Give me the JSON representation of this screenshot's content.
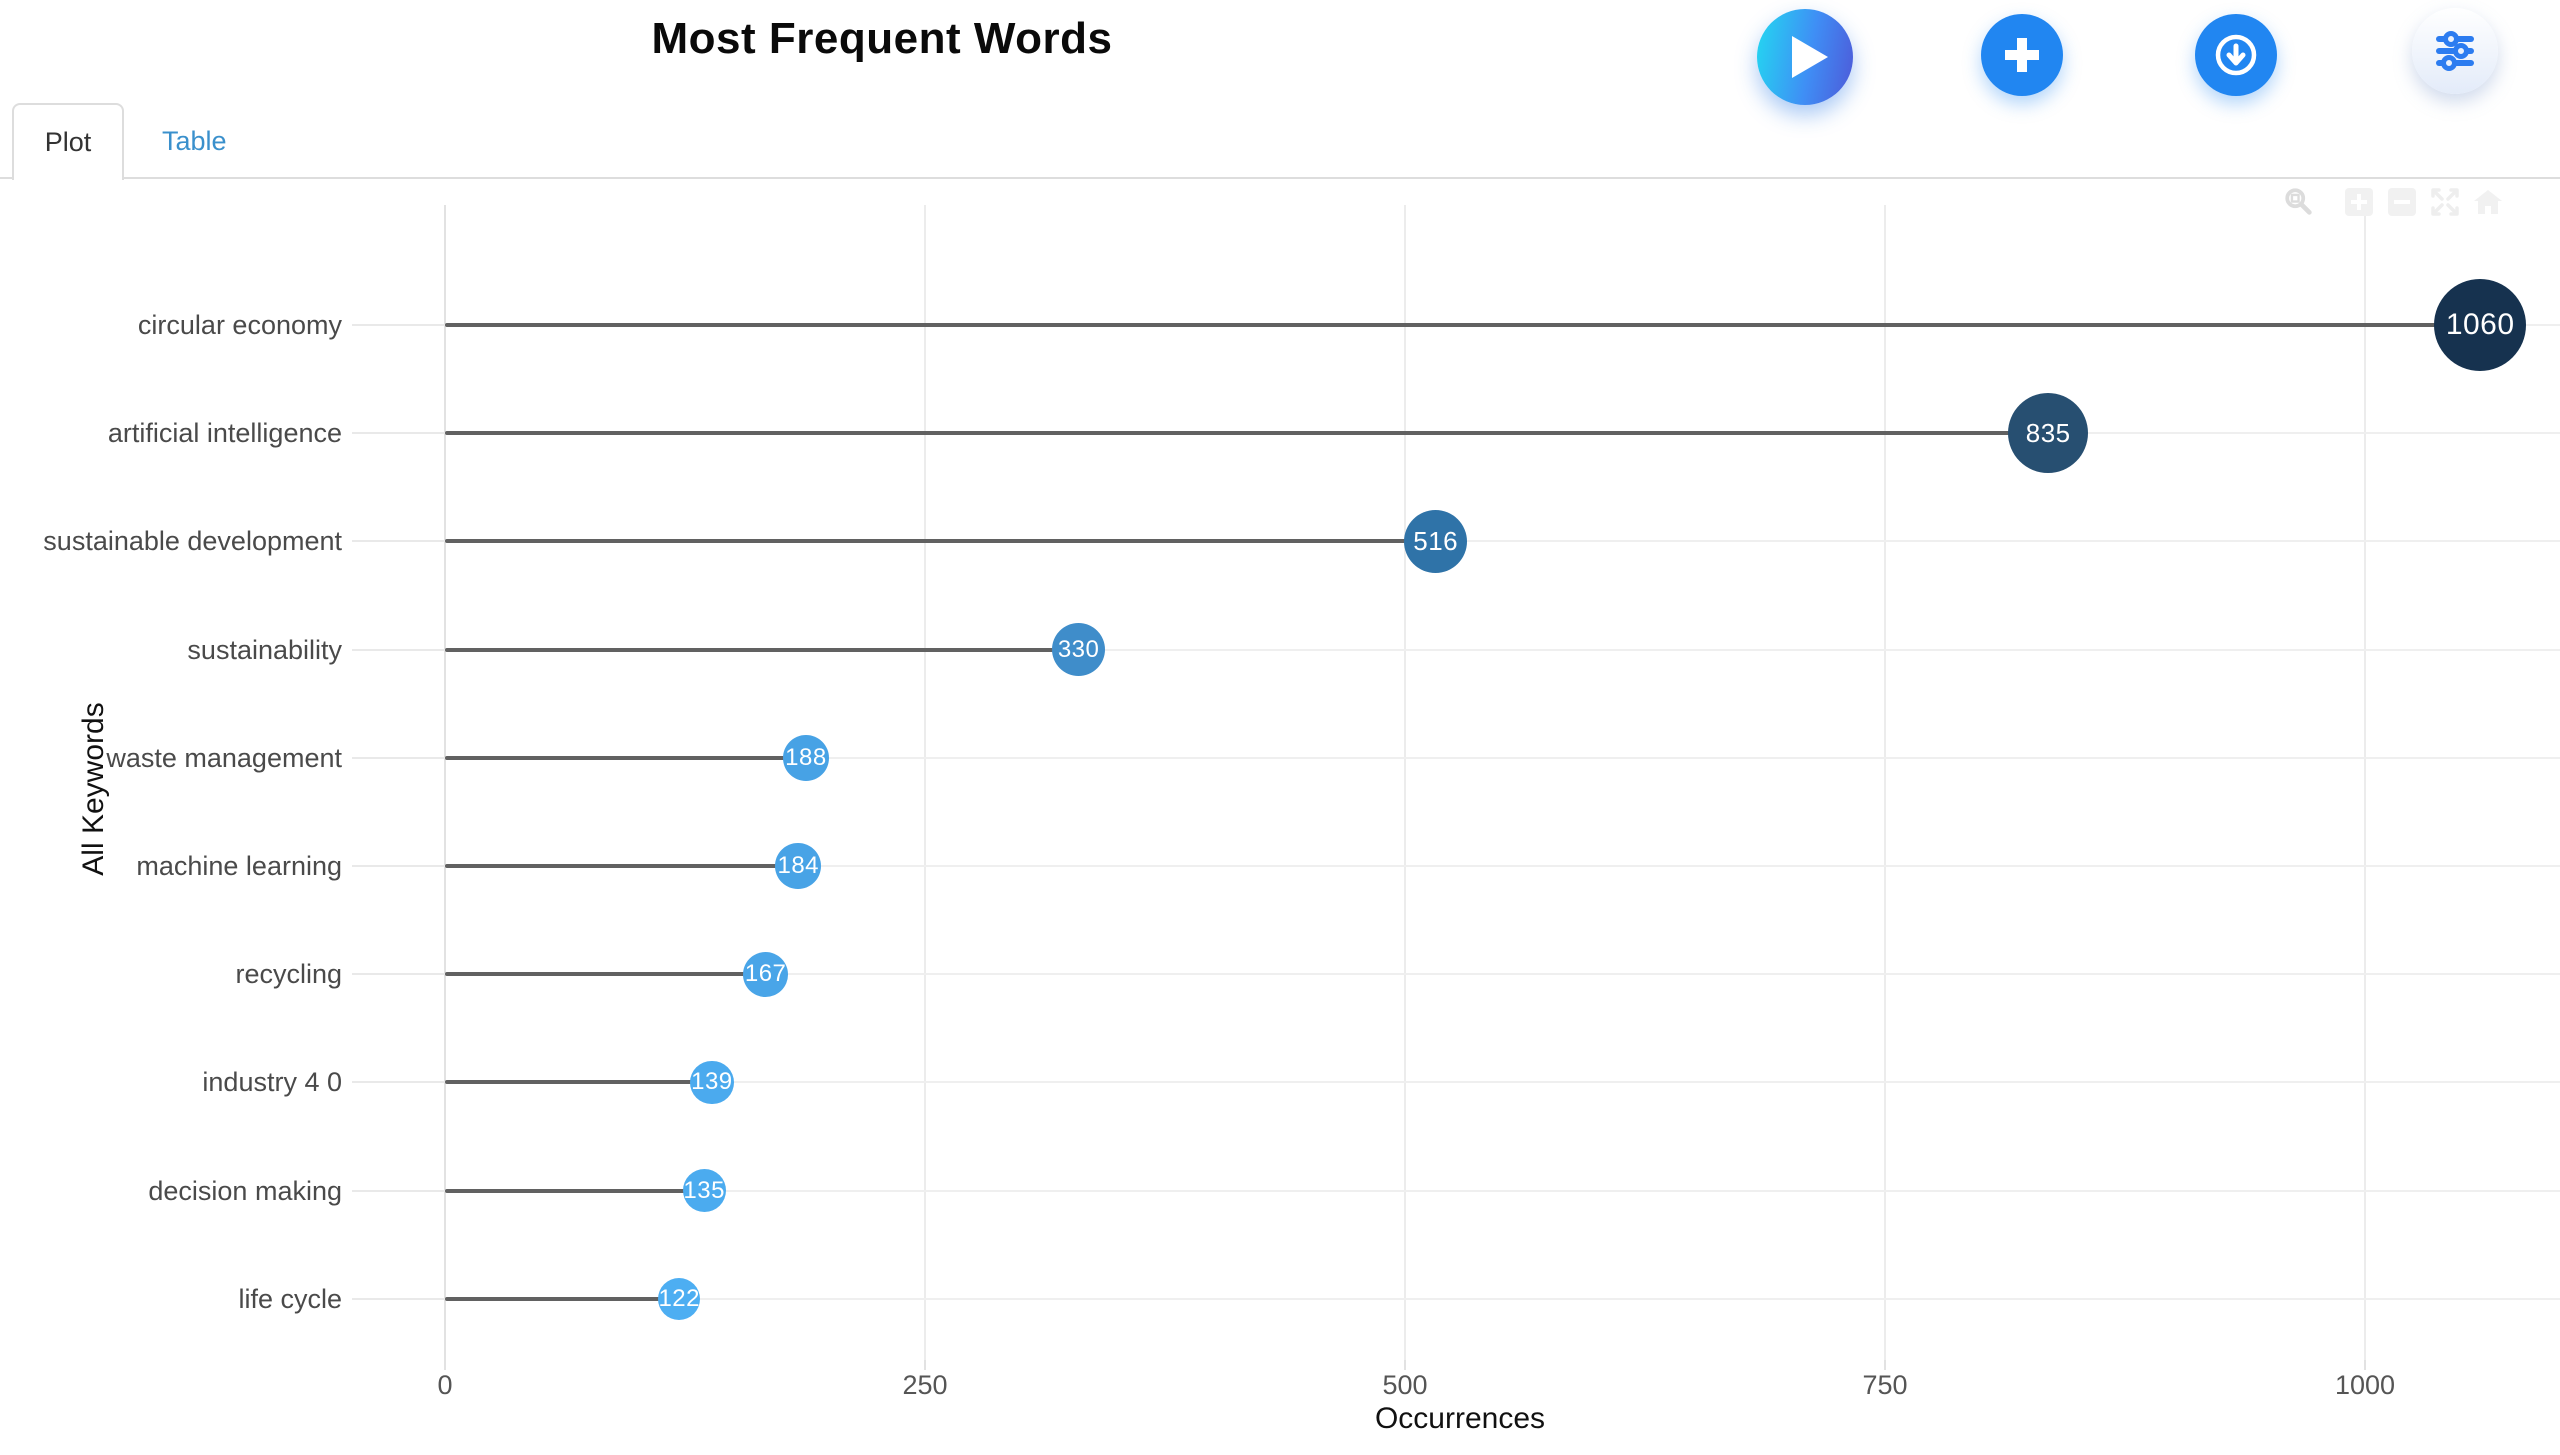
{
  "header": {
    "title": "Most Frequent Words",
    "buttons": [
      {
        "id": "play",
        "icon": "play-icon",
        "label": "play"
      },
      {
        "id": "add",
        "icon": "plus-icon",
        "label": "add"
      },
      {
        "id": "download",
        "icon": "download-icon",
        "label": "download"
      },
      {
        "id": "settings",
        "icon": "sliders-icon",
        "label": "settings"
      }
    ]
  },
  "tabs": [
    {
      "label": "Plot",
      "active": true
    },
    {
      "label": "Table",
      "active": false
    }
  ],
  "modebar": {
    "icons": [
      "zoom-icon",
      "zoom-in-icon",
      "zoom-out-icon",
      "autoscale-icon",
      "reset-home-icon"
    ]
  },
  "chart_data": {
    "type": "bar",
    "variant": "lollipop",
    "orientation": "horizontal",
    "title": "Most Frequent Words",
    "categories": [
      "circular economy",
      "artificial intelligence",
      "sustainable development",
      "sustainability",
      "waste management",
      "machine learning",
      "recycling",
      "industry 4 0",
      "decision making",
      "life cycle"
    ],
    "values": [
      1060,
      835,
      516,
      330,
      188,
      184,
      167,
      139,
      135,
      122
    ],
    "point_colors": [
      "#16324f",
      "#274f71",
      "#2f73a8",
      "#3f8dca",
      "#47a2e5",
      "#48a3e6",
      "#49a5e8",
      "#4baaee",
      "#4babef",
      "#4daef2"
    ],
    "xlabel": "Occurrences",
    "ylabel": "All Keywords",
    "xticks": [
      0,
      250,
      500,
      750,
      1000
    ],
    "xlim": [
      0,
      1101
    ],
    "grid": true,
    "legend": "none",
    "stem_color": "#616161"
  },
  "colors": {
    "button_blue": "#2186f1",
    "play_gradient_start": "#25d2f1",
    "play_gradient_end": "#4e59d8",
    "tab_link": "#3a90cc",
    "grid": "#ececec",
    "stem": "#616161"
  }
}
